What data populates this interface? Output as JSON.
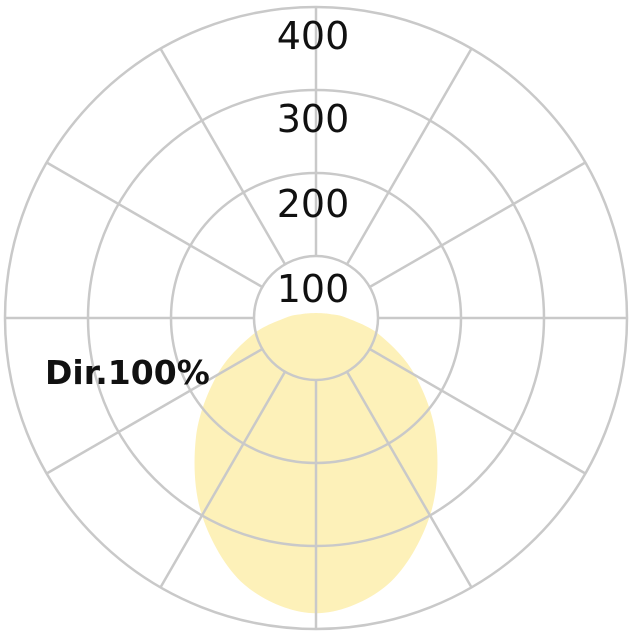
{
  "chart_data": {
    "type": "polar",
    "title": "",
    "radial_ticks": [
      100,
      200,
      300,
      400
    ],
    "radial_tick_labels": [
      "100",
      "200",
      "300",
      "400"
    ],
    "angular_step_deg": 30,
    "grid": true,
    "annotation": "Dir.100%",
    "series": [
      {
        "angles_deg": [
          0,
          15,
          30,
          45,
          60,
          75,
          90,
          105,
          120,
          150,
          180
        ],
        "values": [
          381,
          358,
          300,
          230,
          163,
          105,
          50,
          24,
          15,
          9,
          8
        ],
        "symmetric": true
      }
    ],
    "colors": {
      "fill": "#fdf1b9",
      "grid": "#c9c9c9",
      "text": "#111111"
    }
  }
}
